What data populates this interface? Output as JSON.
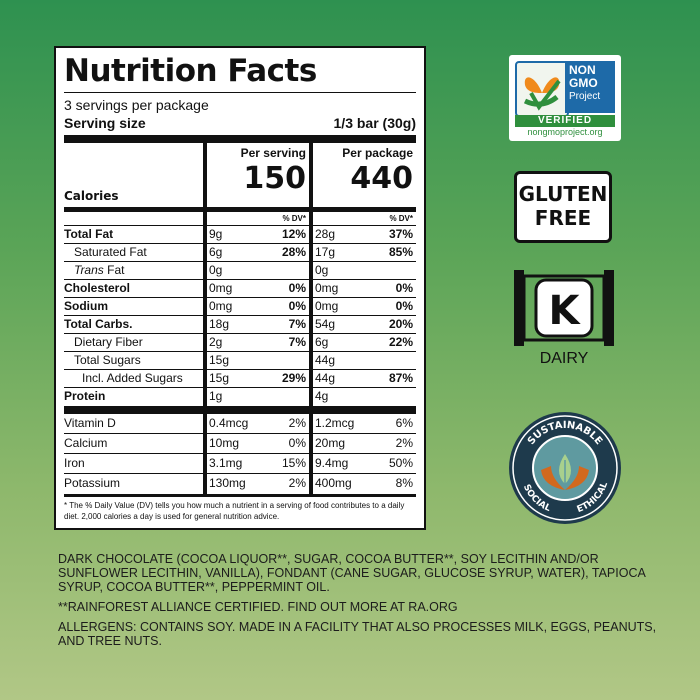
{
  "nutrition": {
    "title": "Nutrition Facts",
    "servings": "3 servings per package",
    "serving_size_label": "Serving size",
    "serving_size_value": "1/3 bar (30g)",
    "per_serving_label": "Per serving",
    "per_package_label": "Per package",
    "calories_label": "Calories",
    "calories_serving": "150",
    "calories_package": "440",
    "dv_label": "% DV*",
    "rows": [
      {
        "label": "Total Fat",
        "style": "b",
        "s_amt": "9g",
        "s_dv": "12%",
        "p_amt": "28g",
        "p_dv": "37%"
      },
      {
        "label": "Saturated Fat",
        "style": "i1",
        "s_amt": "6g",
        "s_dv": "28%",
        "p_amt": "17g",
        "p_dv": "85%"
      },
      {
        "label": "Trans",
        "label_suffix": " Fat",
        "style": "i1",
        "s_amt": "0g",
        "s_dv": "",
        "p_amt": "0g",
        "p_dv": ""
      },
      {
        "label": "Cholesterol",
        "style": "b",
        "s_amt": "0mg",
        "s_dv": "0%",
        "p_amt": "0mg",
        "p_dv": "0%"
      },
      {
        "label": "Sodium",
        "style": "b",
        "s_amt": "0mg",
        "s_dv": "0%",
        "p_amt": "0mg",
        "p_dv": "0%"
      },
      {
        "label": "Total Carbs.",
        "style": "b",
        "s_amt": "18g",
        "s_dv": "7%",
        "p_amt": "54g",
        "p_dv": "20%"
      },
      {
        "label": "Dietary Fiber",
        "style": "i1",
        "s_amt": "2g",
        "s_dv": "7%",
        "p_amt": "6g",
        "p_dv": "22%"
      },
      {
        "label": "Total Sugars",
        "style": "i1",
        "s_amt": "15g",
        "s_dv": "",
        "p_amt": "44g",
        "p_dv": ""
      },
      {
        "label": "Incl. Added Sugars",
        "style": "i2",
        "s_amt": "15g",
        "s_dv": "29%",
        "p_amt": "44g",
        "p_dv": "87%"
      },
      {
        "label": "Protein",
        "style": "b",
        "s_amt": "1g",
        "s_dv": "",
        "p_amt": "4g",
        "p_dv": ""
      }
    ],
    "micros": [
      {
        "label": "Vitamin D",
        "s_amt": "0.4mcg",
        "s_dv": "2%",
        "p_amt": "1.2mcg",
        "p_dv": "6%"
      },
      {
        "label": "Calcium",
        "s_amt": "10mg",
        "s_dv": "0%",
        "p_amt": "20mg",
        "p_dv": "2%"
      },
      {
        "label": "Iron",
        "s_amt": "3.1mg",
        "s_dv": "15%",
        "p_amt": "9.4mg",
        "p_dv": "50%"
      },
      {
        "label": "Potassium",
        "s_amt": "130mg",
        "s_dv": "2%",
        "p_amt": "400mg",
        "p_dv": "8%"
      }
    ],
    "footnote": "* The % Daily Value (DV) tells you how much a nutrient in a serving of food contributes to a daily diet. 2,000 calories a day is used for general nutrition advice."
  },
  "ingredients": {
    "text": "DARK CHOCOLATE (COCOA LIQUOR**, SUGAR, COCOA BUTTER**, SOY LECITHIN AND/OR SUNFLOWER LECITHIN, VANILLA), FONDANT (CANE SUGAR, GLUCOSE SYRUP, WATER), TAPIOCA SYRUP, COCOA BUTTER**, PEPPERMINT OIL.",
    "rainforest": "**RAINFOREST ALLIANCE CERTIFIED. FIND OUT MORE AT RA.ORG",
    "allergens": "ALLERGENS: CONTAINS SOY. MADE IN A FACILITY THAT ALSO PROCESSES MILK, EGGS, PEANUTS, AND TREE NUTS."
  },
  "badges": {
    "nongmo": {
      "line1": "NON",
      "line2": "GMO",
      "line3": "Project",
      "verified": "VERIFIED",
      "url": "nongmoproject.org",
      "icon": "butterfly-icon"
    },
    "gluten_free": {
      "line1": "GLUTEN",
      "line2": "FREE"
    },
    "kosher": {
      "letter": "K",
      "label": "DAIRY",
      "icon": "scroll-icon"
    },
    "sustainable": {
      "top": "SUSTAINABLE",
      "left": "SOCIAL",
      "right": "ETHICAL",
      "icon": "hands-leaf-icon"
    }
  },
  "colors": {
    "bg_top": "#2e9150",
    "bg_bottom": "#b1c786",
    "nongmo_blue": "#1e6aa8",
    "nongmo_green": "#2f8f3d",
    "seal_navy": "#1e3a4c",
    "seal_teal": "#5f9aa0",
    "seal_orange": "#d2691e"
  }
}
